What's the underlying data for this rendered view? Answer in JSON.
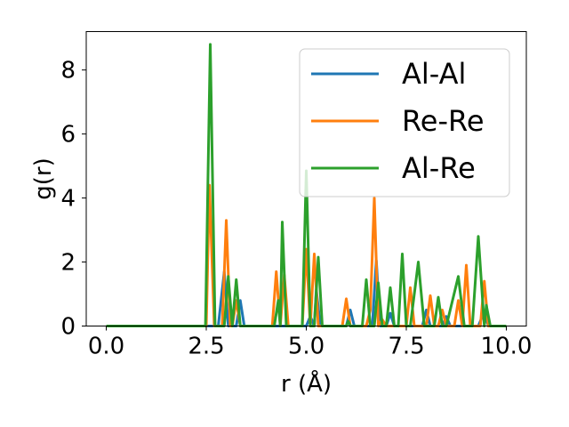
{
  "chart_data": {
    "type": "line",
    "title": "",
    "xlabel": "r (Å)",
    "ylabel": "g(r)",
    "xlim": [
      -0.5,
      10.5
    ],
    "ylim": [
      0,
      9.2
    ],
    "xticks": [
      "0.0",
      "2.5",
      "5.0",
      "7.5",
      "10.0"
    ],
    "yticks": [
      "0",
      "2",
      "4",
      "6",
      "8"
    ],
    "grid": false,
    "legend": {
      "placement": "top-right"
    },
    "series": [
      {
        "name": "Al-Al",
        "color": "#1f77b4",
        "points": [
          [
            0,
            0
          ],
          [
            2.5,
            0
          ],
          [
            2.8,
            0
          ],
          [
            2.95,
            1.7
          ],
          [
            3.05,
            0
          ],
          [
            3.25,
            0
          ],
          [
            3.35,
            0.8
          ],
          [
            3.45,
            0
          ],
          [
            5.0,
            0
          ],
          [
            5.1,
            0.3
          ],
          [
            5.2,
            0
          ],
          [
            5.25,
            1.15
          ],
          [
            5.35,
            0
          ],
          [
            6.0,
            0
          ],
          [
            6.1,
            0.5
          ],
          [
            6.2,
            0
          ],
          [
            6.65,
            0
          ],
          [
            6.75,
            2.05
          ],
          [
            6.85,
            0
          ],
          [
            7.0,
            0
          ],
          [
            7.1,
            0.4
          ],
          [
            7.2,
            0
          ],
          [
            7.9,
            0
          ],
          [
            8.0,
            0.5
          ],
          [
            8.1,
            0
          ],
          [
            8.4,
            0
          ],
          [
            8.5,
            0.3
          ],
          [
            8.6,
            0
          ],
          [
            9.3,
            0
          ],
          [
            9.45,
            0.45
          ],
          [
            9.55,
            0
          ],
          [
            10.0,
            0
          ]
        ]
      },
      {
        "name": "Re-Re",
        "color": "#ff7f0e",
        "points": [
          [
            0,
            0
          ],
          [
            2.5,
            0
          ],
          [
            2.58,
            4.4
          ],
          [
            2.7,
            0
          ],
          [
            2.9,
            0
          ],
          [
            3.0,
            3.3
          ],
          [
            3.1,
            0
          ],
          [
            3.15,
            0
          ],
          [
            3.25,
            0.8
          ],
          [
            3.35,
            0
          ],
          [
            4.15,
            0
          ],
          [
            4.25,
            1.7
          ],
          [
            4.35,
            0
          ],
          [
            4.45,
            1.6
          ],
          [
            4.55,
            0
          ],
          [
            4.9,
            0
          ],
          [
            5.0,
            2.4
          ],
          [
            5.1,
            0
          ],
          [
            5.2,
            2.25
          ],
          [
            5.3,
            0
          ],
          [
            5.9,
            0
          ],
          [
            6.0,
            0.85
          ],
          [
            6.1,
            0
          ],
          [
            6.5,
            0
          ],
          [
            6.6,
            0.5
          ],
          [
            6.7,
            4.0
          ],
          [
            6.8,
            0
          ],
          [
            6.9,
            0.2
          ],
          [
            7.0,
            0
          ],
          [
            7.5,
            0
          ],
          [
            7.6,
            1.2
          ],
          [
            7.7,
            0
          ],
          [
            8.0,
            0
          ],
          [
            8.1,
            0.95
          ],
          [
            8.2,
            0
          ],
          [
            8.3,
            0
          ],
          [
            8.4,
            0.5
          ],
          [
            8.5,
            0
          ],
          [
            8.7,
            0
          ],
          [
            8.8,
            0.8
          ],
          [
            8.9,
            0
          ],
          [
            9.0,
            1.9
          ],
          [
            9.1,
            0
          ],
          [
            9.35,
            0
          ],
          [
            9.45,
            1.4
          ],
          [
            9.55,
            0
          ],
          [
            10.0,
            0
          ]
        ]
      },
      {
        "name": "Al-Re",
        "color": "#2ca02c",
        "points": [
          [
            0,
            0
          ],
          [
            2.48,
            0
          ],
          [
            2.6,
            8.8
          ],
          [
            2.72,
            0
          ],
          [
            2.95,
            0
          ],
          [
            3.05,
            1.55
          ],
          [
            3.15,
            0
          ],
          [
            3.25,
            1.45
          ],
          [
            3.35,
            0
          ],
          [
            4.2,
            0
          ],
          [
            4.3,
            0.8
          ],
          [
            4.35,
            0
          ],
          [
            4.4,
            3.25
          ],
          [
            4.5,
            0
          ],
          [
            4.9,
            0
          ],
          [
            5.0,
            4.85
          ],
          [
            5.1,
            0
          ],
          [
            5.2,
            0
          ],
          [
            5.3,
            2.15
          ],
          [
            5.4,
            0
          ],
          [
            6.0,
            0
          ],
          [
            6.05,
            0.15
          ],
          [
            6.1,
            0
          ],
          [
            6.4,
            0
          ],
          [
            6.5,
            1.45
          ],
          [
            6.6,
            0
          ],
          [
            6.7,
            0
          ],
          [
            6.8,
            1.35
          ],
          [
            6.9,
            0
          ],
          [
            7.0,
            0
          ],
          [
            7.1,
            1.2
          ],
          [
            7.2,
            0
          ],
          [
            7.3,
            0
          ],
          [
            7.4,
            2.25
          ],
          [
            7.5,
            0
          ],
          [
            7.6,
            0
          ],
          [
            7.8,
            2.0
          ],
          [
            7.95,
            0
          ],
          [
            8.2,
            0
          ],
          [
            8.3,
            0.9
          ],
          [
            8.4,
            0
          ],
          [
            8.5,
            0
          ],
          [
            8.8,
            1.55
          ],
          [
            8.95,
            0
          ],
          [
            9.15,
            0
          ],
          [
            9.3,
            2.8
          ],
          [
            9.45,
            0
          ],
          [
            9.5,
            0.65
          ],
          [
            9.6,
            0
          ],
          [
            10.0,
            0
          ]
        ]
      }
    ]
  }
}
